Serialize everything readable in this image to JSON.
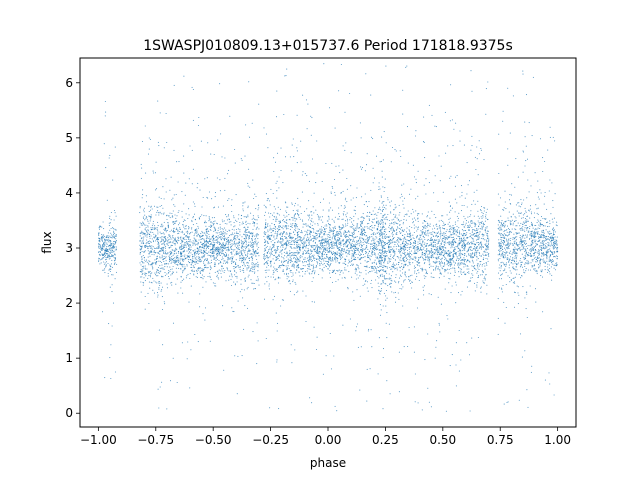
{
  "chart_data": {
    "type": "scatter",
    "title": "1SWASPJ010809.13+015737.6 Period 171818.9375s",
    "xlabel": "phase",
    "ylabel": "flux",
    "xlim": [
      -1.08,
      1.08
    ],
    "ylim": [
      -0.25,
      6.45
    ],
    "xticks": [
      -1.0,
      -0.75,
      -0.5,
      -0.25,
      0.0,
      0.25,
      0.5,
      0.75,
      1.0
    ],
    "xtick_labels": [
      "−1.00",
      "−0.75",
      "−0.50",
      "−0.25",
      "0.00",
      "0.25",
      "0.50",
      "0.75",
      "1.00"
    ],
    "yticks": [
      0,
      1,
      2,
      3,
      4,
      5,
      6
    ],
    "ytick_labels": [
      "0",
      "1",
      "2",
      "3",
      "4",
      "5",
      "6"
    ],
    "grid": false,
    "point_color": "#1f77b4",
    "clusters": [
      {
        "center_phase": -0.98,
        "phase_range": [
          -1.0,
          -0.92
        ],
        "center_flux": 3.0,
        "core_spread": 0.25
      },
      {
        "center_phase": -0.5,
        "phase_range": [
          -0.82,
          -0.3
        ],
        "center_flux": 3.0,
        "core_spread": 0.35
      },
      {
        "center_phase": 0.0,
        "phase_range": [
          -0.28,
          0.25
        ],
        "center_flux": 3.05,
        "core_spread": 0.35
      },
      {
        "center_phase": 0.5,
        "phase_range": [
          0.22,
          0.7
        ],
        "center_flux": 3.0,
        "core_spread": 0.35
      },
      {
        "center_phase": 1.0,
        "phase_range": [
          0.74,
          1.0
        ],
        "center_flux": 3.05,
        "core_spread": 0.3
      }
    ],
    "gaps_in_phase": [
      [
        -0.9,
        -0.8
      ],
      [
        -0.3,
        -0.27
      ],
      [
        0.2,
        0.23
      ],
      [
        0.7,
        0.74
      ]
    ],
    "flux_range_observed": [
      0.0,
      6.35
    ]
  }
}
